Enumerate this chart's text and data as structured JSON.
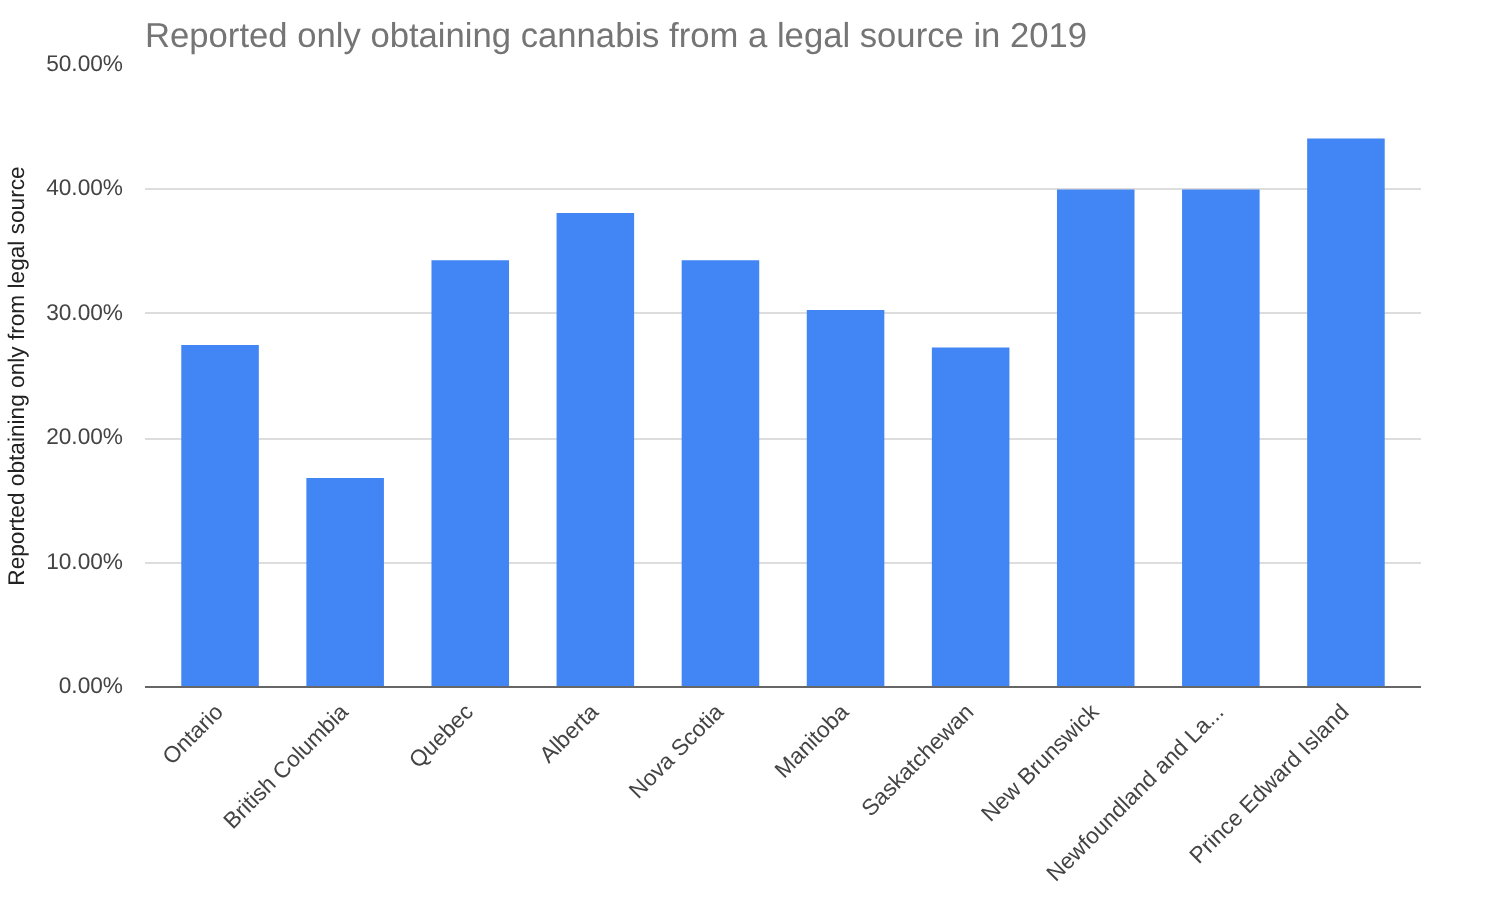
{
  "chart_data": {
    "type": "bar",
    "title": "Reported only obtaining cannabis from a legal source in 2019",
    "ylabel": "Reported obtaining only from legal source",
    "categories": [
      "Ontario",
      "British Columbia",
      "Quebec",
      "Alberta",
      "Nova Scotia",
      "Manitoba",
      "Saskatchewan",
      "New Brunswick",
      "Newfoundland and La...",
      "Prince Edward Island"
    ],
    "values": [
      27.5,
      16.8,
      34.3,
      38.1,
      34.3,
      30.3,
      27.3,
      40.0,
      40.0,
      44.1
    ],
    "color": "#4285f4",
    "ylim": [
      0,
      50
    ],
    "yticks": [
      {
        "value": 0,
        "label": "0.00%"
      },
      {
        "value": 10,
        "label": "10.00%"
      },
      {
        "value": 20,
        "label": "20.00%"
      },
      {
        "value": 30,
        "label": "30.00%"
      },
      {
        "value": 40,
        "label": "40.00%"
      },
      {
        "value": 50,
        "label": "50.00%"
      }
    ],
    "grid": "y"
  }
}
